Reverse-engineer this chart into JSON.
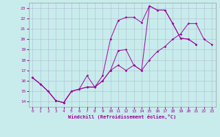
{
  "xlabel": "Windchill (Refroidissement éolien,°C)",
  "xlim": [
    -0.5,
    23.5
  ],
  "ylim": [
    13.5,
    23.5
  ],
  "xticks": [
    0,
    1,
    2,
    3,
    4,
    5,
    6,
    7,
    8,
    9,
    10,
    11,
    12,
    13,
    14,
    15,
    16,
    17,
    18,
    19,
    20,
    21,
    22,
    23
  ],
  "yticks": [
    14,
    15,
    16,
    17,
    18,
    19,
    20,
    21,
    22,
    23
  ],
  "bg_color": "#c8ecec",
  "line_color": "#990099",
  "grid_color": "#b0b8d0",
  "c1x": [
    0,
    1,
    2,
    3,
    4,
    5,
    6,
    7,
    8,
    9,
    10,
    11,
    12,
    13,
    14,
    15,
    16,
    17,
    18,
    19,
    20,
    21
  ],
  "c1y": [
    16.3,
    15.7,
    15.0,
    14.1,
    13.9,
    15.0,
    15.2,
    16.5,
    15.4,
    16.5,
    20.0,
    21.8,
    22.1,
    22.1,
    21.6,
    23.2,
    22.8,
    22.8,
    21.5,
    20.1,
    20.0,
    19.5
  ],
  "c2x": [
    0,
    1,
    2,
    3,
    4,
    5,
    6,
    7,
    8,
    9,
    10,
    11,
    12,
    13,
    14,
    15,
    16,
    17,
    18,
    19,
    20,
    21,
    22,
    23
  ],
  "c2y": [
    16.3,
    15.7,
    15.0,
    14.1,
    13.9,
    15.0,
    15.2,
    15.4,
    15.4,
    16.0,
    17.0,
    17.5,
    17.0,
    17.5,
    17.0,
    18.0,
    18.8,
    19.3,
    20.0,
    20.5,
    21.5,
    21.5,
    20.0,
    19.5
  ],
  "c3x": [
    0,
    1,
    2,
    3,
    4,
    5,
    6,
    7,
    8,
    9,
    10,
    11,
    12,
    13,
    14,
    15,
    16,
    17,
    18,
    19,
    20,
    21
  ],
  "c3y": [
    16.3,
    15.7,
    15.0,
    14.1,
    13.9,
    15.0,
    15.2,
    15.4,
    15.4,
    16.0,
    17.0,
    18.9,
    19.0,
    17.5,
    17.0,
    23.2,
    22.8,
    22.8,
    21.5,
    20.1,
    20.0,
    19.5
  ]
}
